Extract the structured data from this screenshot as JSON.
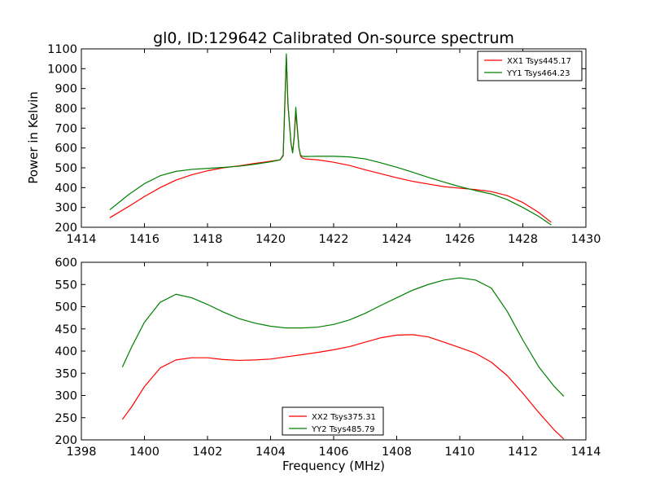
{
  "chart_data": [
    {
      "type": "line",
      "title": "gl0, ID:129642 Calibrated On-source spectrum",
      "xlabel": "",
      "ylabel": "Power in Kelvin",
      "xlim": [
        1414,
        1430
      ],
      "ylim": [
        200,
        1100
      ],
      "xticks": [
        1414,
        1416,
        1418,
        1420,
        1422,
        1424,
        1426,
        1428,
        1430
      ],
      "yticks": [
        200,
        300,
        400,
        500,
        600,
        700,
        800,
        900,
        1000,
        1100
      ],
      "legend_position": "top-right",
      "series": [
        {
          "name": "XX1 Tsys445.17",
          "color": "#ff0000",
          "x": [
            1414.9,
            1415.5,
            1416.0,
            1416.5,
            1417.0,
            1417.5,
            1418.0,
            1418.5,
            1419.0,
            1419.5,
            1420.0,
            1420.3,
            1420.4,
            1420.45,
            1420.5,
            1420.55,
            1420.6,
            1420.65,
            1420.7,
            1420.75,
            1420.8,
            1420.85,
            1420.9,
            1420.95,
            1421.0,
            1421.1,
            1421.5,
            1422.0,
            1422.5,
            1423.0,
            1423.5,
            1424.0,
            1424.5,
            1425.0,
            1425.5,
            1426.0,
            1426.5,
            1427.0,
            1427.5,
            1428.0,
            1428.5,
            1428.9
          ],
          "y": [
            248,
            305,
            355,
            400,
            438,
            465,
            485,
            500,
            510,
            522,
            533,
            540,
            560,
            800,
            1060,
            820,
            720,
            620,
            580,
            650,
            780,
            690,
            600,
            560,
            550,
            545,
            540,
            528,
            512,
            490,
            470,
            450,
            432,
            418,
            405,
            397,
            390,
            380,
            360,
            325,
            275,
            225
          ]
        },
        {
          "name": "YY1 Tsys464.23",
          "color": "#008000",
          "x": [
            1414.9,
            1415.5,
            1416.0,
            1416.5,
            1417.0,
            1417.5,
            1418.0,
            1418.5,
            1419.0,
            1419.5,
            1420.0,
            1420.3,
            1420.4,
            1420.45,
            1420.5,
            1420.55,
            1420.6,
            1420.65,
            1420.7,
            1420.75,
            1420.8,
            1420.85,
            1420.9,
            1420.95,
            1421.0,
            1421.1,
            1421.5,
            1422.0,
            1422.5,
            1423.0,
            1423.5,
            1424.0,
            1424.5,
            1425.0,
            1425.5,
            1426.0,
            1426.5,
            1427.0,
            1427.5,
            1428.0,
            1428.5,
            1428.9
          ],
          "y": [
            288,
            365,
            420,
            460,
            482,
            492,
            497,
            502,
            508,
            518,
            530,
            540,
            565,
            820,
            1075,
            830,
            720,
            620,
            575,
            660,
            805,
            700,
            600,
            565,
            558,
            557,
            558,
            558,
            555,
            545,
            525,
            503,
            478,
            452,
            428,
            405,
            385,
            368,
            340,
            300,
            255,
            212
          ]
        }
      ]
    },
    {
      "type": "line",
      "title": "",
      "xlabel": "Frequency (MHz)",
      "ylabel": "",
      "xlim": [
        1398,
        1414
      ],
      "ylim": [
        200,
        600
      ],
      "xticks": [
        1398,
        1400,
        1402,
        1404,
        1406,
        1408,
        1410,
        1412,
        1414
      ],
      "yticks": [
        200,
        250,
        300,
        350,
        400,
        450,
        500,
        550,
        600
      ],
      "legend_position": "bottom-center",
      "series": [
        {
          "name": "XX2 Tsys375.31",
          "color": "#ff0000",
          "x": [
            1399.3,
            1399.6,
            1400.0,
            1400.5,
            1401.0,
            1401.5,
            1402.0,
            1402.5,
            1403.0,
            1403.5,
            1404.0,
            1404.5,
            1405.0,
            1405.5,
            1406.0,
            1406.5,
            1407.0,
            1407.5,
            1408.0,
            1408.5,
            1409.0,
            1409.5,
            1410.0,
            1410.5,
            1411.0,
            1411.5,
            1412.0,
            1412.5,
            1413.0,
            1413.3
          ],
          "y": [
            246,
            275,
            320,
            362,
            380,
            385,
            385,
            381,
            379,
            380,
            382,
            387,
            392,
            397,
            403,
            410,
            420,
            430,
            436,
            437,
            432,
            420,
            408,
            395,
            375,
            345,
            305,
            262,
            222,
            202
          ]
        },
        {
          "name": "YY2 Tsys485.79",
          "color": "#008000",
          "x": [
            1399.3,
            1399.6,
            1400.0,
            1400.5,
            1401.0,
            1401.5,
            1402.0,
            1402.5,
            1403.0,
            1403.5,
            1404.0,
            1404.5,
            1405.0,
            1405.5,
            1406.0,
            1406.5,
            1407.0,
            1407.5,
            1408.0,
            1408.5,
            1409.0,
            1409.5,
            1410.0,
            1410.5,
            1411.0,
            1411.5,
            1412.0,
            1412.5,
            1413.0,
            1413.3
          ],
          "y": [
            364,
            410,
            465,
            510,
            528,
            520,
            505,
            488,
            473,
            463,
            456,
            452,
            452,
            454,
            460,
            470,
            485,
            503,
            520,
            537,
            550,
            560,
            565,
            560,
            542,
            490,
            425,
            365,
            320,
            298
          ]
        }
      ]
    }
  ]
}
